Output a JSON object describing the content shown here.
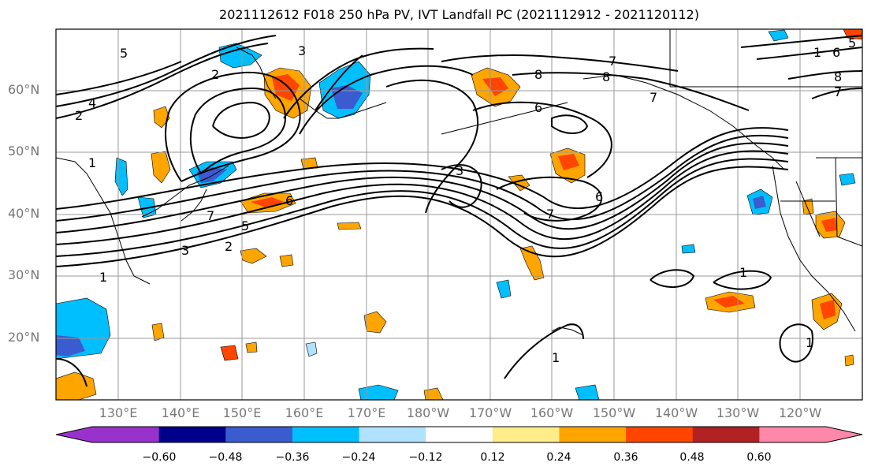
{
  "title": "2021112612 F018 250 hPa PV, IVT Landfall PC (2021112912 - 2021120112)",
  "lat_labels": [
    {
      "text": "60°N",
      "lat": 60
    },
    {
      "text": "50°N",
      "lat": 50
    },
    {
      "text": "40°N",
      "lat": 40
    },
    {
      "text": "30°N",
      "lat": 30
    },
    {
      "text": "20°N",
      "lat": 20
    }
  ],
  "lon_labels": [
    "130°E",
    "140°E",
    "150°E",
    "160°E",
    "170°E",
    "180°W",
    "170°W",
    "160°W",
    "150°W",
    "140°W",
    "130°W",
    "120°W"
  ],
  "colorbar": {
    "ticks": [
      "−0.60",
      "−0.48",
      "−0.36",
      "−0.24",
      "−0.12",
      "0.12",
      "0.24",
      "0.36",
      "0.48",
      "0.60"
    ],
    "colors": [
      "#9932CC",
      "#00008B",
      "#3B5BD0",
      "#00BFFF",
      "#B0E2FF",
      "#FFFFFF",
      "#FFEC8B",
      "#FFA500",
      "#FF4500",
      "#B22222",
      "#FF88AA"
    ]
  },
  "contour_labels": [
    "5",
    "3",
    "2",
    "4",
    "2",
    "1",
    "7",
    "8",
    "6",
    "7",
    "8",
    "7",
    "1",
    "3",
    "7",
    "6",
    "7",
    "6",
    "5",
    "2",
    "3",
    "1",
    "1",
    "1",
    "1",
    "6",
    "5",
    "8"
  ],
  "map_extent": {
    "lon_min": 120,
    "lon_max": 245,
    "lat_min": 10,
    "lat_max": 70
  }
}
